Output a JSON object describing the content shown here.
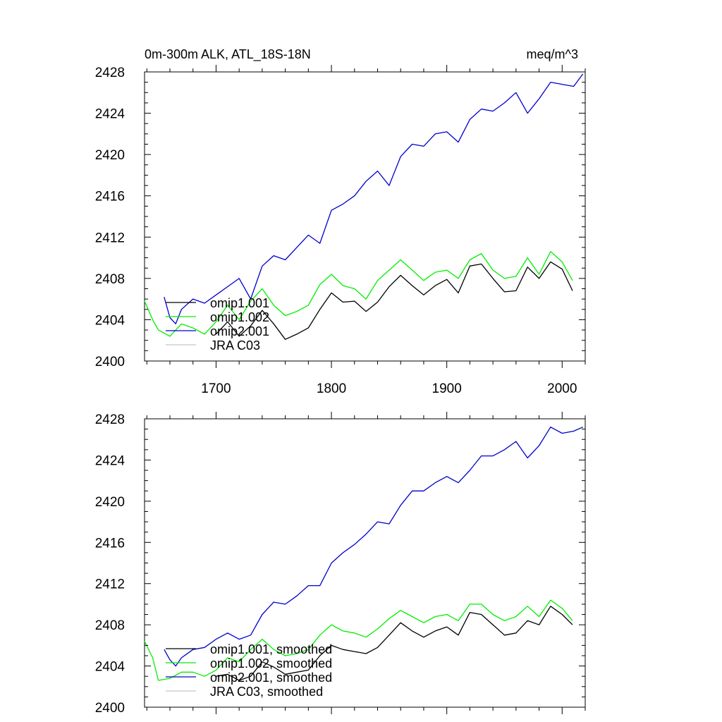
{
  "chart_data": [
    {
      "type": "line",
      "title": "0m-300m ALK, ATL_18S-18N",
      "units": "meq/m^3",
      "xlim": [
        1638,
        2020
      ],
      "ylim": [
        2400,
        2428
      ],
      "x_ticks": [
        1700,
        1800,
        1900,
        2000
      ],
      "y_ticks": [
        2400,
        2404,
        2408,
        2412,
        2416,
        2420,
        2424,
        2428
      ],
      "grid": false,
      "legend": "lower-left, inside",
      "series": [
        {
          "name": "omip1.001",
          "color": "#000000",
          "x": [
            1700,
            1710,
            1720,
            1730,
            1740,
            1750,
            1760,
            1770,
            1780,
            1790,
            1800,
            1810,
            1820,
            1830,
            1840,
            1850,
            1860,
            1870,
            1880,
            1890,
            1900,
            1910,
            1920,
            1930,
            1940,
            1950,
            1960,
            1970,
            1980,
            1990,
            2000,
            2009
          ],
          "values": [
            2402.6,
            2403.8,
            2402.4,
            2403.4,
            2404.9,
            2403.6,
            2402.1,
            2402.6,
            2403.2,
            2405.0,
            2406.6,
            2405.7,
            2405.8,
            2404.8,
            2405.7,
            2407.2,
            2408.3,
            2407.3,
            2406.4,
            2407.3,
            2407.9,
            2406.6,
            2409.2,
            2409.4,
            2408.0,
            2406.7,
            2406.8,
            2409.1,
            2408.0,
            2409.6,
            2408.9,
            2406.8
          ]
        },
        {
          "name": "omip1.002",
          "color": "#00ee00",
          "x": [
            1638,
            1645,
            1650,
            1660,
            1670,
            1680,
            1690,
            1700,
            1710,
            1720,
            1730,
            1740,
            1750,
            1760,
            1770,
            1780,
            1790,
            1800,
            1810,
            1820,
            1830,
            1840,
            1850,
            1860,
            1870,
            1880,
            1890,
            1900,
            1910,
            1920,
            1930,
            1940,
            1950,
            1960,
            1970,
            1980,
            1990,
            2000,
            2009
          ],
          "values": [
            2405.8,
            2404.0,
            2403.0,
            2402.4,
            2403.6,
            2403.2,
            2402.6,
            2403.8,
            2405.4,
            2404.0,
            2405.8,
            2407.0,
            2405.4,
            2404.4,
            2404.8,
            2405.4,
            2407.4,
            2408.4,
            2407.3,
            2407.0,
            2406.0,
            2407.8,
            2408.8,
            2409.8,
            2408.8,
            2407.8,
            2408.6,
            2408.8,
            2408.0,
            2409.8,
            2410.4,
            2408.8,
            2408.0,
            2408.2,
            2410.0,
            2408.4,
            2410.6,
            2409.6,
            2407.8
          ]
        },
        {
          "name": "omip2.001",
          "color": "#0000cc",
          "x": [
            1655,
            1660,
            1665,
            1670,
            1680,
            1690,
            1700,
            1710,
            1720,
            1730,
            1740,
            1750,
            1760,
            1770,
            1780,
            1790,
            1800,
            1810,
            1820,
            1830,
            1840,
            1850,
            1860,
            1870,
            1880,
            1890,
            1900,
            1910,
            1920,
            1930,
            1940,
            1950,
            1960,
            1970,
            1980,
            1990,
            2000,
            2010,
            2018
          ],
          "values": [
            2406.2,
            2404.2,
            2403.6,
            2405.0,
            2406.0,
            2405.6,
            2406.4,
            2407.2,
            2408.0,
            2406.0,
            2409.2,
            2410.2,
            2409.8,
            2411.0,
            2412.2,
            2411.4,
            2414.6,
            2415.2,
            2416.0,
            2417.4,
            2418.4,
            2417.0,
            2419.8,
            2421.0,
            2420.8,
            2422.0,
            2422.2,
            2421.2,
            2423.4,
            2424.4,
            2424.2,
            2425.0,
            2426.0,
            2424.0,
            2425.4,
            2427.0,
            2426.8,
            2426.6,
            2427.8
          ]
        },
        {
          "name": "JRA C03",
          "color": "#c8c8c8",
          "x": [],
          "values": []
        }
      ]
    },
    {
      "type": "line",
      "title": "",
      "units": "",
      "xlim": [
        1638,
        2020
      ],
      "ylim": [
        2400,
        2428
      ],
      "x_ticks": [
        1700,
        1800,
        1900,
        2000
      ],
      "y_ticks": [
        2400,
        2404,
        2408,
        2412,
        2416,
        2420,
        2424,
        2428
      ],
      "grid": false,
      "legend": "lower-left, inside",
      "series": [
        {
          "name": "omip1.001, smoothed",
          "color": "#000000",
          "x": [
            1700,
            1710,
            1720,
            1730,
            1740,
            1750,
            1760,
            1770,
            1780,
            1790,
            1800,
            1810,
            1820,
            1830,
            1840,
            1850,
            1860,
            1870,
            1880,
            1890,
            1900,
            1910,
            1920,
            1930,
            1940,
            1950,
            1960,
            1970,
            1980,
            1990,
            2000,
            2009
          ],
          "values": [
            2403.0,
            2403.2,
            2402.6,
            2403.0,
            2404.4,
            2403.9,
            2403.2,
            2403.4,
            2403.6,
            2405.0,
            2406.0,
            2405.6,
            2405.4,
            2405.2,
            2405.8,
            2407.0,
            2408.2,
            2407.4,
            2406.8,
            2407.4,
            2407.8,
            2407.0,
            2409.2,
            2409.0,
            2408.0,
            2407.0,
            2407.2,
            2408.4,
            2408.0,
            2409.8,
            2409.0,
            2408.0
          ]
        },
        {
          "name": "omip1.002, smoothed",
          "color": "#00ee00",
          "x": [
            1638,
            1645,
            1650,
            1660,
            1670,
            1680,
            1690,
            1700,
            1710,
            1720,
            1730,
            1740,
            1750,
            1760,
            1770,
            1780,
            1790,
            1800,
            1810,
            1820,
            1830,
            1840,
            1850,
            1860,
            1870,
            1880,
            1890,
            1900,
            1910,
            1920,
            1930,
            1940,
            1950,
            1960,
            1970,
            1980,
            1990,
            2000,
            2009
          ],
          "values": [
            2406.4,
            2404.8,
            2402.6,
            2402.8,
            2403.4,
            2403.4,
            2403.0,
            2403.6,
            2404.8,
            2404.4,
            2405.6,
            2406.6,
            2405.6,
            2405.0,
            2405.2,
            2405.6,
            2407.0,
            2408.0,
            2407.4,
            2407.2,
            2406.8,
            2407.6,
            2408.6,
            2409.4,
            2408.8,
            2408.2,
            2408.8,
            2409.0,
            2408.4,
            2410.0,
            2410.0,
            2409.0,
            2408.4,
            2408.8,
            2409.8,
            2408.8,
            2410.4,
            2409.6,
            2408.4
          ]
        },
        {
          "name": "omip2.001, smoothed",
          "color": "#0000cc",
          "x": [
            1655,
            1660,
            1665,
            1670,
            1680,
            1690,
            1700,
            1710,
            1720,
            1730,
            1740,
            1750,
            1760,
            1770,
            1780,
            1790,
            1800,
            1810,
            1820,
            1830,
            1840,
            1850,
            1860,
            1870,
            1880,
            1890,
            1900,
            1910,
            1920,
            1930,
            1940,
            1950,
            1960,
            1970,
            1980,
            1990,
            2000,
            2010,
            2018
          ],
          "values": [
            2405.6,
            2404.6,
            2404.0,
            2404.8,
            2405.6,
            2405.8,
            2406.6,
            2407.2,
            2406.6,
            2407.0,
            2409.0,
            2410.2,
            2410.0,
            2410.8,
            2411.8,
            2411.8,
            2414.0,
            2415.0,
            2415.8,
            2416.8,
            2418.0,
            2417.8,
            2419.6,
            2421.0,
            2421.0,
            2421.8,
            2422.4,
            2421.8,
            2423.0,
            2424.4,
            2424.4,
            2425.0,
            2425.8,
            2424.2,
            2425.4,
            2427.2,
            2426.6,
            2426.8,
            2427.2
          ]
        },
        {
          "name": "JRA C03, smoothed",
          "color": "#c8c8c8",
          "x": [],
          "values": []
        }
      ]
    }
  ]
}
